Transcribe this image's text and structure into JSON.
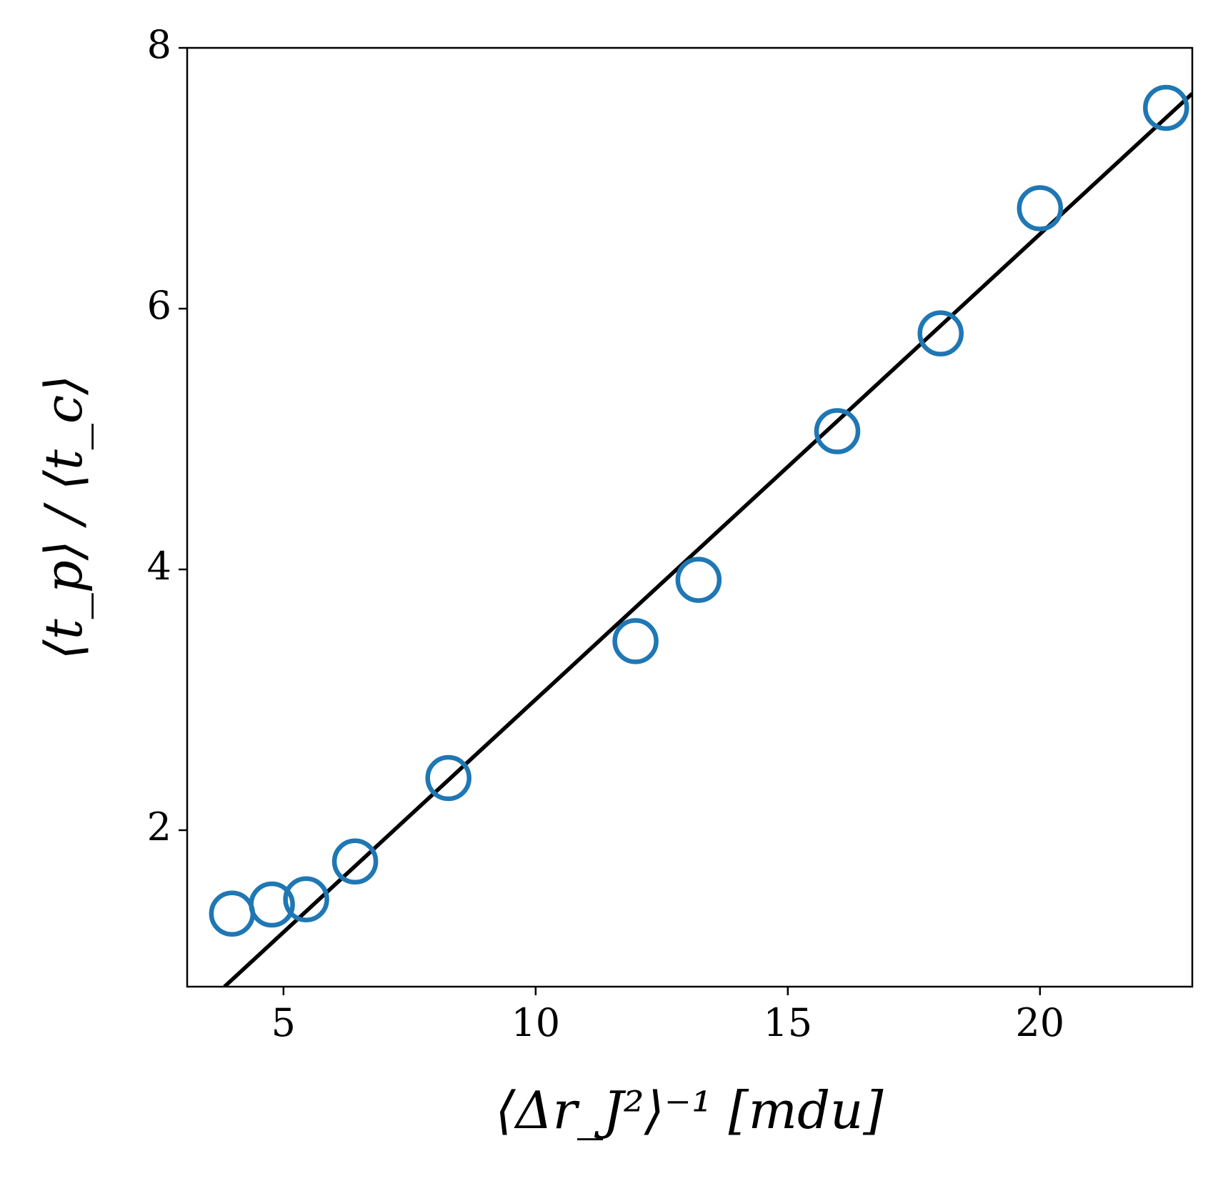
{
  "chart_data": {
    "type": "scatter",
    "x_label": "⟨Δr_J²⟩⁻¹  [mdu]",
    "y_label": "⟨t_p⟩ / ⟨t_c⟩",
    "series": [
      {
        "type": "scatter",
        "color": "#1f77b4",
        "x": [
          3.98,
          4.77,
          5.45,
          6.42,
          8.27,
          11.98,
          13.23,
          15.98,
          18.03,
          20.0,
          22.5
        ],
        "values": [
          1.36,
          1.43,
          1.47,
          1.76,
          2.4,
          3.45,
          3.92,
          5.06,
          5.81,
          6.77,
          7.54
        ]
      },
      {
        "type": "line",
        "color": "#000000",
        "x": [
          3.83,
          23.02
        ],
        "values": [
          0.8,
          7.65
        ]
      }
    ],
    "xlim": [
      3.09,
      23.02
    ],
    "ylim": [
      0.8,
      8
    ],
    "xticks": [
      5,
      10,
      15,
      20
    ],
    "yticks": [
      2,
      4,
      6,
      8
    ]
  }
}
